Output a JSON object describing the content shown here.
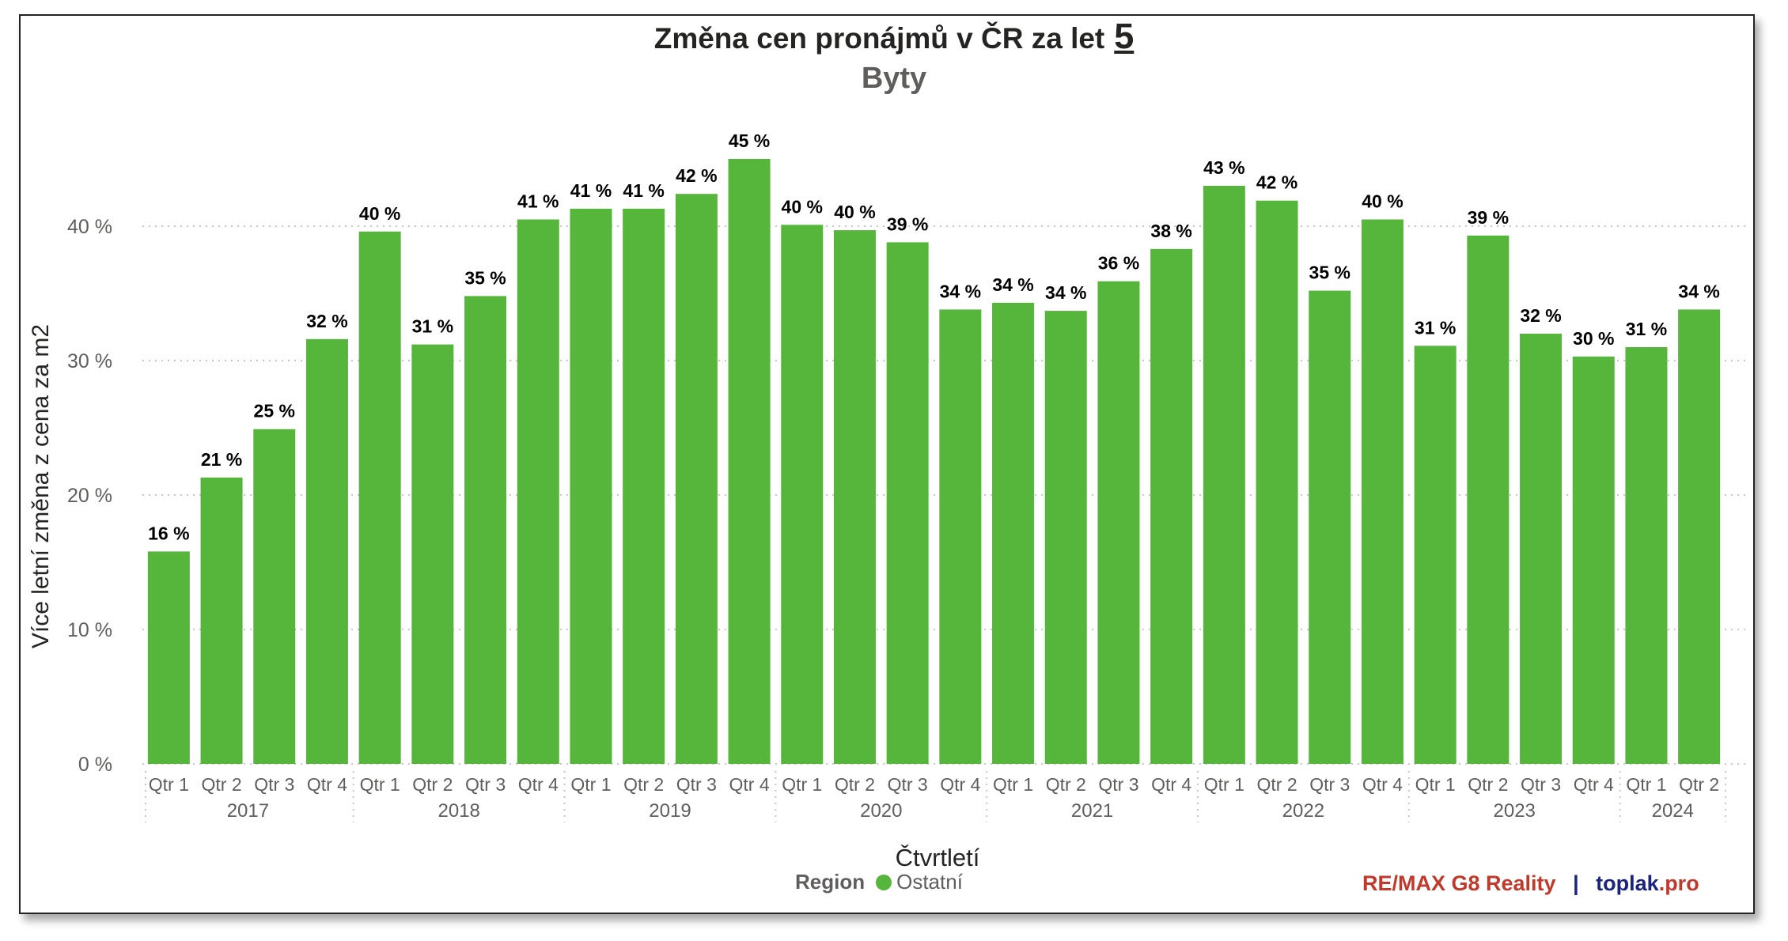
{
  "title": "Změna cen pronájmů v ČR za let",
  "title_number": "5",
  "subtitle": "Byty",
  "colors": {
    "bar": "#55b63b",
    "grid": "#c8c6c4",
    "brand_red": "#c0392b",
    "brand_blue": "#1a237e"
  },
  "legend": {
    "title": "Region",
    "items": [
      "Ostatní"
    ]
  },
  "brand": {
    "part1": "RE/MAX G8 Reality",
    "sep": "|",
    "part2_a": "toplak",
    "part2_b": ".pro"
  },
  "chart_data": {
    "type": "bar",
    "title": "Změna cen pronájmů v ČR za let 5",
    "subtitle": "Byty",
    "xlabel": "Čtvrtletí",
    "ylabel": "Více letní změna z cena za m2",
    "ylim": [
      0,
      45
    ],
    "yticks": [
      "0 %",
      "10 %",
      "20 %",
      "30 %",
      "40 %"
    ],
    "ytick_values": [
      0,
      10,
      20,
      30,
      40
    ],
    "grid": true,
    "legend_placement": "bottom",
    "years": [
      {
        "label": "2017",
        "quarters": 4
      },
      {
        "label": "2018",
        "quarters": 4
      },
      {
        "label": "2019",
        "quarters": 4
      },
      {
        "label": "2020",
        "quarters": 4
      },
      {
        "label": "2021",
        "quarters": 4
      },
      {
        "label": "2022",
        "quarters": 4
      },
      {
        "label": "2023",
        "quarters": 4
      },
      {
        "label": "2024",
        "quarters": 2
      }
    ],
    "categories": [
      "Qtr 1",
      "Qtr 2",
      "Qtr 3",
      "Qtr 4",
      "Qtr 1",
      "Qtr 2",
      "Qtr 3",
      "Qtr 4",
      "Qtr 1",
      "Qtr 2",
      "Qtr 3",
      "Qtr 4",
      "Qtr 1",
      "Qtr 2",
      "Qtr 3",
      "Qtr 4",
      "Qtr 1",
      "Qtr 2",
      "Qtr 3",
      "Qtr 4",
      "Qtr 1",
      "Qtr 2",
      "Qtr 3",
      "Qtr 4",
      "Qtr 1",
      "Qtr 2",
      "Qtr 3",
      "Qtr 4",
      "Qtr 1",
      "Qtr 2"
    ],
    "series": [
      {
        "name": "Ostatní",
        "values": [
          15.8,
          21.3,
          24.9,
          31.6,
          39.6,
          31.2,
          34.8,
          40.5,
          41.3,
          41.3,
          42.4,
          45.0,
          40.1,
          39.7,
          38.8,
          33.8,
          34.3,
          33.7,
          35.9,
          38.3,
          43.0,
          41.9,
          35.2,
          40.5,
          31.1,
          39.3,
          32.0,
          30.3,
          31.0,
          33.8
        ],
        "labels": [
          "16 %",
          "21 %",
          "25 %",
          "32 %",
          "40 %",
          "31 %",
          "35 %",
          "41 %",
          "41 %",
          "41 %",
          "42 %",
          "45 %",
          "40 %",
          "40 %",
          "39 %",
          "34 %",
          "34 %",
          "34 %",
          "36 %",
          "38 %",
          "43 %",
          "42 %",
          "35 %",
          "40 %",
          "31 %",
          "39 %",
          "32 %",
          "30 %",
          "31 %",
          "34 %"
        ]
      }
    ]
  }
}
